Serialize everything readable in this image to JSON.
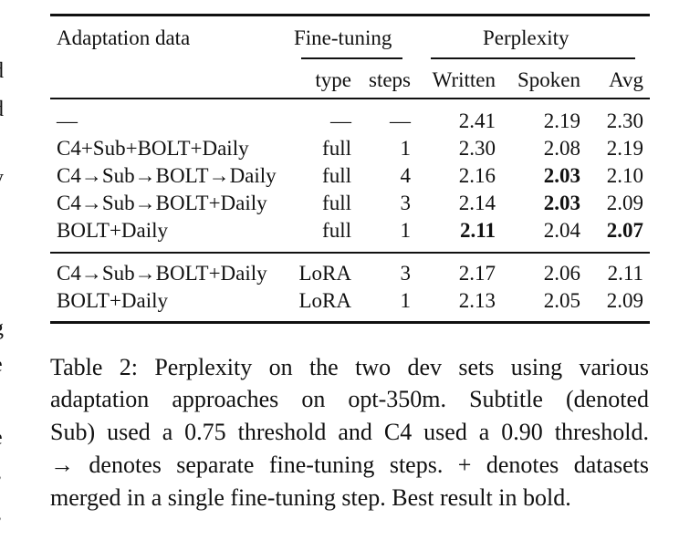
{
  "margin_fragments": [
    "-",
    "d",
    "d",
    "-",
    "y",
    "g",
    "e",
    "-",
    "e",
    "s",
    "s"
  ],
  "table": {
    "header": {
      "adaptation": "Adaptation data",
      "fine_tuning": "Fine-tuning",
      "perplexity": "Perplexity",
      "type": "type",
      "steps": "steps",
      "written": "Written",
      "spoken": "Spoken",
      "avg": "Avg"
    },
    "rows": [
      [
        "—",
        "—",
        "—",
        "2.41",
        "2.19",
        "2.30"
      ],
      [
        "C4+Sub+BOLT+Daily",
        "full",
        "1",
        "2.30",
        "2.08",
        "2.19"
      ],
      [
        "C4→Sub→BOLT→Daily",
        "full",
        "4",
        "2.16",
        "2.03",
        "2.10"
      ],
      [
        "C4→Sub→BOLT+Daily",
        "full",
        "3",
        "2.14",
        "2.03",
        "2.09"
      ],
      [
        "BOLT+Daily",
        "full",
        "1",
        "2.11",
        "2.04",
        "2.07"
      ],
      [
        "C4→Sub→BOLT+Daily",
        "LoRA",
        "3",
        "2.17",
        "2.06",
        "2.11"
      ],
      [
        "BOLT+Daily",
        "LoRA",
        "1",
        "2.13",
        "2.05",
        "2.09"
      ]
    ]
  },
  "caption": {
    "lines": [
      "Table 2: Perplexity on the two dev sets using various",
      "adaptation approaches on opt-350m. Subtitle (denoted",
      "Sub) used a 0.75 threshold and C4 used a 0.90 threshold.",
      "→ denotes separate fine-tuning steps. + denotes datasets",
      "merged in a single fine-tuning step. Best result in bold."
    ]
  }
}
